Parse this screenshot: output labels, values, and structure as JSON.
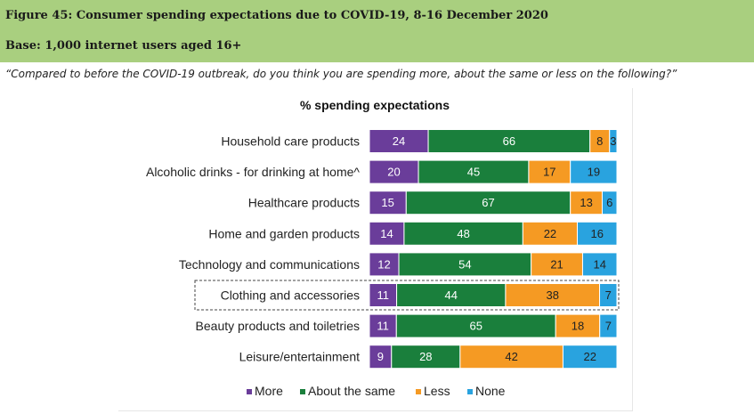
{
  "figure": {
    "title": "Figure 45: Consumer spending expectations due to COVID-19, 8-16 December 2020",
    "base": "Base: 1,000 internet users aged 16+",
    "question": "“Compared to before the COVID-19 outbreak, do you think you are spending more, about the same or less on the following?”"
  },
  "colors": {
    "header_bg": "#a9cf7f",
    "More": "#6a3d9a",
    "About the same": "#1a7f3c",
    "Less": "#f59a23",
    "None": "#29a3df"
  },
  "chart_data": {
    "type": "bar",
    "orientation": "horizontal",
    "stacked": "100%",
    "title": "% spending expectations",
    "categories": [
      "Household care products",
      "Alcoholic drinks - for drinking at home^",
      "Healthcare products",
      "Home and garden products",
      "Technology and communications",
      "Clothing and accessories",
      "Beauty products and toiletries",
      "Leisure/entertainment"
    ],
    "series": [
      {
        "name": "More",
        "values": [
          24,
          20,
          15,
          14,
          12,
          11,
          11,
          9
        ]
      },
      {
        "name": "About the same",
        "values": [
          66,
          45,
          67,
          48,
          54,
          44,
          65,
          28
        ]
      },
      {
        "name": "Less",
        "values": [
          8,
          17,
          13,
          22,
          21,
          38,
          18,
          42
        ]
      },
      {
        "name": "None",
        "values": [
          3,
          19,
          6,
          16,
          14,
          7,
          7,
          22
        ]
      }
    ],
    "highlighted_category": "Clothing and accessories",
    "legend_position": "bottom",
    "grid": false
  }
}
